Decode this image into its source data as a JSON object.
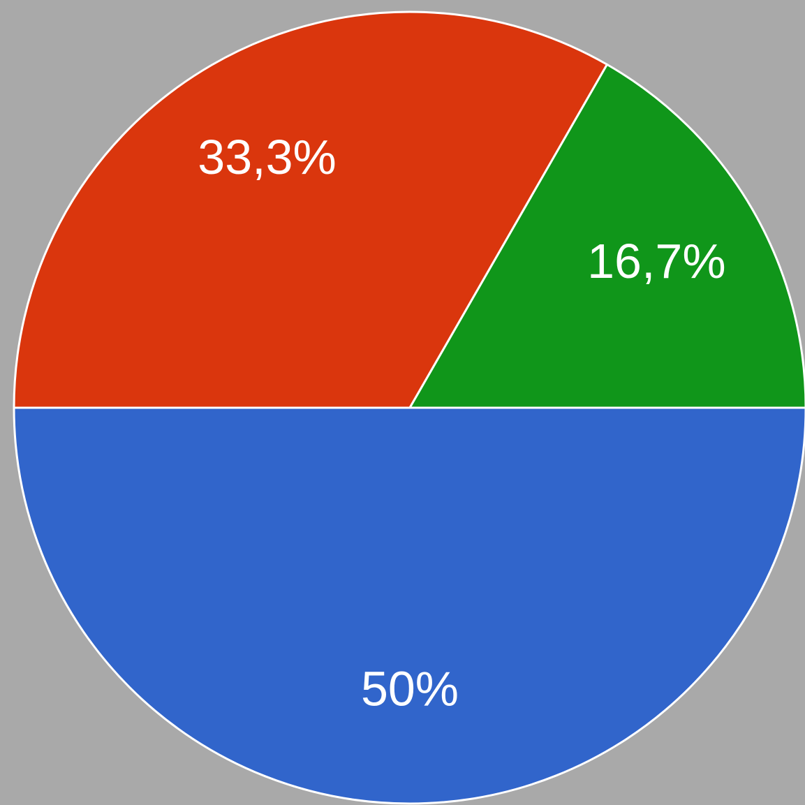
{
  "chart_data": {
    "type": "pie",
    "values": [
      50,
      33.3,
      16.7
    ],
    "value_labels": [
      "50%",
      "33,3%",
      "16,7%"
    ],
    "colors": [
      "#3165cb",
      "#da360d",
      "#10961a"
    ]
  }
}
